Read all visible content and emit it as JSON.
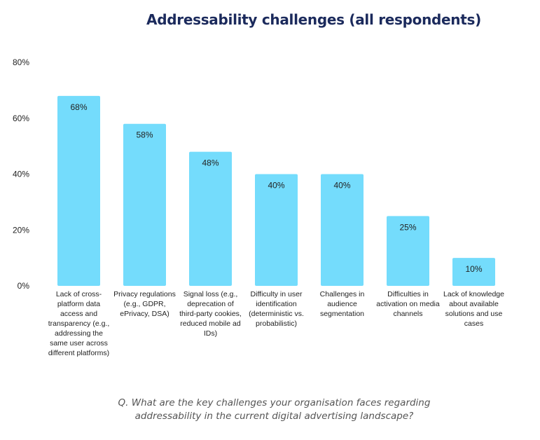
{
  "chart_data": {
    "type": "bar",
    "title": "Addressability challenges (all respondents)",
    "xlabel": "",
    "ylabel": "",
    "ylim": [
      0,
      80
    ],
    "yticks": [
      0,
      20,
      40,
      60,
      80
    ],
    "ytick_labels": [
      "0%",
      "20%",
      "40%",
      "60%",
      "80%"
    ],
    "grid": false,
    "categories": [
      "Lack of cross-platform data access and transparency (e.g., addressing the same user across different platforms)",
      "Privacy regulations (e.g., GDPR, ePrivacy, DSA)",
      "Signal loss (e.g., deprecation of third-party cookies, reduced mobile ad IDs)",
      "Difficulty in user identification (deterministic vs. probabilistic)",
      "Challenges in audience segmentation",
      "Difficulties in activation on media channels",
      "Lack of knowledge about available solutions and use cases"
    ],
    "values": [
      68,
      58,
      48,
      40,
      40,
      25,
      10
    ],
    "data_labels": [
      "68%",
      "58%",
      "48%",
      "40%",
      "40%",
      "25%",
      "10%"
    ],
    "bar_color": "#74dcfc"
  },
  "caption": {
    "line1": "Q. What are the key challenges your organisation faces regarding",
    "line2": "addressability in the current digital advertising landscape?"
  },
  "title_color": "#1b2a5c"
}
